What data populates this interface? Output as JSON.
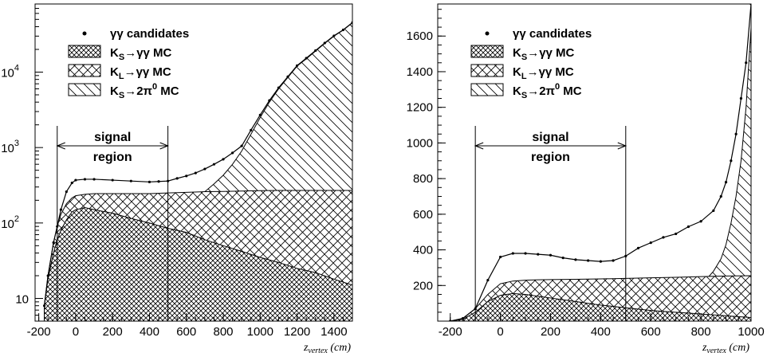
{
  "chart_data": [
    {
      "type": "histogram",
      "panel": "left",
      "y_scale": "log",
      "xlim": [
        -220,
        1500
      ],
      "ylim": [
        5,
        80000
      ],
      "x_ticks": [
        "-200",
        "0",
        "200",
        "400",
        "600",
        "800",
        "1000",
        "1200",
        "1400"
      ],
      "y_ticks": [
        "10",
        "10",
        "10",
        "10"
      ],
      "y_tick_values": [
        10,
        100,
        1000,
        10000
      ],
      "y_tick_exponents": [
        "",
        "2",
        "3",
        "4"
      ],
      "xlabel": "z",
      "xlabel_sub": "vertex",
      "xlabel_unit": "(cm)",
      "legend": {
        "position": "top-left",
        "entries": [
          "γγ candidates",
          "K",
          "K",
          "K"
        ],
        "entry_subs": [
          "",
          "S",
          "L",
          "S"
        ],
        "entry_rest": [
          "",
          "→γγ MC",
          "→γγ MC",
          "→2π"
        ],
        "entry_sup": [
          "",
          "",
          "",
          "0"
        ],
        "entry_tail": [
          "",
          "",
          "",
          " MC"
        ],
        "entry_styles": [
          "points",
          "dense-crosshatch",
          "crosshatch",
          "diagonal"
        ]
      },
      "signal_region": {
        "label_line1": "signal",
        "label_line2": "region",
        "x": [
          -100,
          500
        ]
      },
      "series": [
        {
          "name": "Ks→γγ MC",
          "style": "dense-crosshatch",
          "x": [
            -170,
            -150,
            -120,
            -100,
            -80,
            -50,
            -20,
            0,
            50,
            100,
            200,
            300,
            400,
            500,
            600,
            700,
            800,
            900,
            1000,
            1100,
            1200,
            1300,
            1400,
            1500
          ],
          "y": [
            8,
            18,
            40,
            60,
            80,
            110,
            140,
            150,
            160,
            150,
            135,
            115,
            100,
            85,
            75,
            60,
            50,
            42,
            35,
            30,
            25,
            22,
            18,
            15
          ]
        },
        {
          "name": "KL→γγ MC",
          "style": "crosshatch",
          "x": [
            -170,
            -150,
            -120,
            -100,
            -80,
            -50,
            -20,
            0,
            50,
            100,
            200,
            300,
            400,
            500,
            600,
            700,
            800,
            900,
            1000,
            1100,
            1200,
            1300,
            1400,
            1500
          ],
          "y": [
            8,
            20,
            55,
            90,
            130,
            180,
            215,
            230,
            240,
            245,
            245,
            245,
            245,
            250,
            255,
            260,
            262,
            265,
            268,
            270,
            270,
            270,
            270,
            270
          ]
        },
        {
          "name": "Ks→2π0 MC",
          "style": "diagonal",
          "x": [
            400,
            450,
            500,
            550,
            600,
            650,
            700,
            750,
            800,
            850,
            900,
            950,
            1000,
            1050,
            1100,
            1150,
            1200,
            1250,
            1300,
            1350,
            1400,
            1450,
            1500
          ],
          "y": [
            10,
            20,
            45,
            90,
            140,
            190,
            260,
            330,
            430,
            600,
            900,
            1500,
            2500,
            4000,
            6000,
            8500,
            12000,
            15000,
            19000,
            24000,
            30000,
            36000,
            45000
          ]
        },
        {
          "name": "γγ candidates",
          "style": "points",
          "x": [
            -170,
            -150,
            -120,
            -100,
            -80,
            -50,
            -20,
            0,
            50,
            100,
            200,
            300,
            400,
            450,
            500,
            550,
            600,
            650,
            700,
            750,
            800,
            850,
            900,
            950,
            1000,
            1050,
            1100,
            1150,
            1200,
            1250,
            1300,
            1350,
            1400,
            1450,
            1500
          ],
          "y": [
            8,
            20,
            55,
            90,
            150,
            260,
            340,
            370,
            380,
            380,
            370,
            360,
            350,
            355,
            360,
            390,
            420,
            460,
            520,
            600,
            700,
            850,
            1050,
            1700,
            2700,
            4200,
            6200,
            8700,
            12200,
            15300,
            19300,
            24300,
            30300,
            36300,
            45300
          ]
        }
      ]
    },
    {
      "type": "histogram",
      "panel": "right",
      "y_scale": "linear",
      "xlim": [
        -250,
        1000
      ],
      "ylim": [
        0,
        1780
      ],
      "x_ticks": [
        "-200",
        "0",
        "200",
        "400",
        "600",
        "800",
        "1000"
      ],
      "y_ticks": [
        "200",
        "400",
        "600",
        "800",
        "1000",
        "1200",
        "1400",
        "1600"
      ],
      "xlabel": "z",
      "xlabel_sub": "vertex",
      "xlabel_unit": "(cm)",
      "legend": {
        "position": "top-left",
        "entries": [
          "γγ candidates",
          "K",
          "K",
          "K"
        ],
        "entry_subs": [
          "",
          "S",
          "L",
          "S"
        ],
        "entry_rest": [
          "",
          "→γγ MC",
          "→γγ MC",
          "→2π"
        ],
        "entry_sup": [
          "",
          "",
          "",
          "0"
        ],
        "entry_tail": [
          "",
          "",
          "",
          " MC"
        ],
        "entry_styles": [
          "points",
          "dense-crosshatch",
          "crosshatch",
          "diagonal"
        ]
      },
      "signal_region": {
        "label_line1": "signal",
        "label_line2": "region",
        "x": [
          -100,
          500
        ]
      },
      "series": [
        {
          "name": "Ks→γγ MC",
          "style": "dense-crosshatch",
          "x": [
            -200,
            -150,
            -100,
            -50,
            0,
            50,
            100,
            150,
            200,
            300,
            400,
            500,
            600,
            700,
            800,
            900,
            1000
          ],
          "y": [
            0,
            10,
            50,
            110,
            145,
            155,
            150,
            140,
            130,
            110,
            90,
            75,
            60,
            50,
            40,
            30,
            20
          ]
        },
        {
          "name": "KL→γγ MC",
          "style": "crosshatch",
          "x": [
            -200,
            -150,
            -100,
            -50,
            0,
            50,
            100,
            150,
            200,
            300,
            400,
            500,
            600,
            700,
            800,
            900,
            1000
          ],
          "y": [
            0,
            15,
            70,
            150,
            210,
            225,
            230,
            232,
            233,
            235,
            237,
            240,
            243,
            246,
            250,
            253,
            255
          ]
        },
        {
          "name": "Ks→2π0 MC",
          "style": "diagonal",
          "x": [
            420,
            450,
            500,
            550,
            600,
            650,
            700,
            750,
            800,
            850,
            880,
            900,
            920,
            940,
            960,
            980,
            1000
          ],
          "y": [
            0,
            5,
            15,
            30,
            50,
            80,
            110,
            150,
            200,
            280,
            350,
            430,
            550,
            700,
            900,
            1200,
            1650
          ]
        },
        {
          "name": "γγ candidates",
          "style": "points",
          "x": [
            -200,
            -150,
            -100,
            -50,
            0,
            50,
            100,
            150,
            200,
            250,
            300,
            350,
            400,
            450,
            500,
            550,
            600,
            650,
            700,
            750,
            800,
            850,
            880,
            900,
            920,
            940,
            960,
            980,
            1000
          ],
          "y": [
            0,
            15,
            70,
            230,
            360,
            380,
            380,
            375,
            370,
            355,
            345,
            340,
            335,
            340,
            365,
            410,
            440,
            470,
            490,
            530,
            560,
            620,
            700,
            780,
            900,
            1050,
            1250,
            1450,
            1780
          ]
        }
      ]
    }
  ]
}
